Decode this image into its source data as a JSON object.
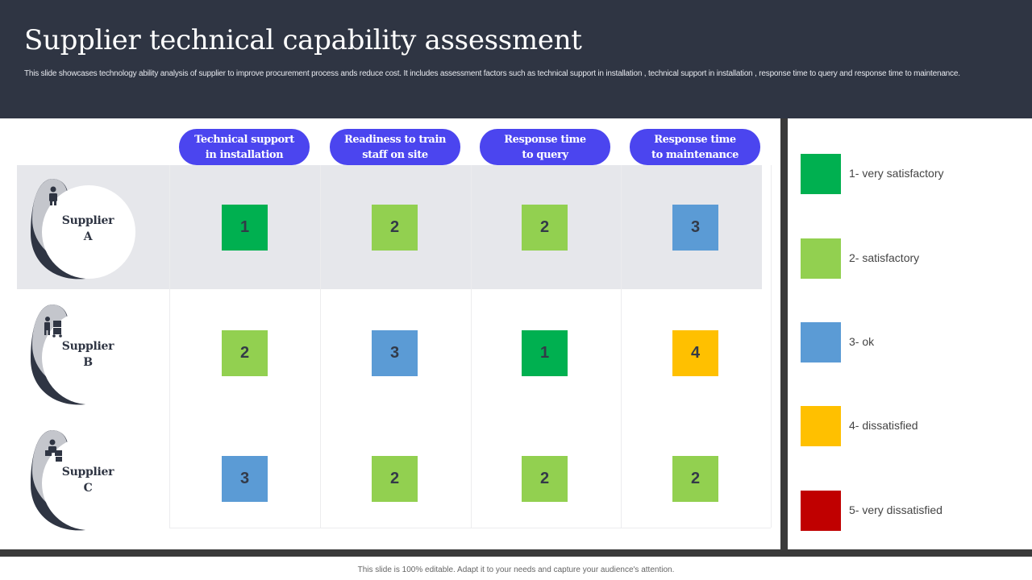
{
  "header": {
    "title": "Supplier technical capability assessment",
    "subtitle": "This slide showcases technology ability analysis of supplier to improve procurement process ands reduce cost. It includes assessment factors such as technical support in installation , technical support in installation , response time to query and response time to maintenance."
  },
  "columns": [
    {
      "line1": "Technical support",
      "line2": "in installation"
    },
    {
      "line1": "Readiness to train",
      "line2": "staff on site"
    },
    {
      "line1": "Response time",
      "line2": "to query"
    },
    {
      "line1": "Response time",
      "line2": "to maintenance"
    }
  ],
  "suppliers": [
    {
      "line1": "Supplier",
      "line2": "A",
      "icon": "person-icon",
      "scores": [
        "1",
        "2",
        "2",
        "3"
      ]
    },
    {
      "line1": "Supplier",
      "line2": "B",
      "icon": "delivery-person-icon",
      "scores": [
        "2",
        "3",
        "1",
        "4"
      ]
    },
    {
      "line1": "Supplier",
      "line2": "C",
      "icon": "person-with-boxes-icon",
      "scores": [
        "3",
        "2",
        "2",
        "2"
      ]
    }
  ],
  "legend": [
    {
      "score": "1",
      "label": "1- very satisfactory",
      "color": "#00b050"
    },
    {
      "score": "2",
      "label": "2- satisfactory",
      "color": "#92d050"
    },
    {
      "score": "3",
      "label": "3- ok",
      "color": "#5b9bd5"
    },
    {
      "score": "4",
      "label": "4- dissatisfied",
      "color": "#ffc000"
    },
    {
      "score": "5",
      "label": "5- very dissatisfied",
      "color": "#c00000"
    }
  ],
  "footer": {
    "text": "This slide is 100% editable. Adapt it to your needs and capture your audience's attention."
  }
}
